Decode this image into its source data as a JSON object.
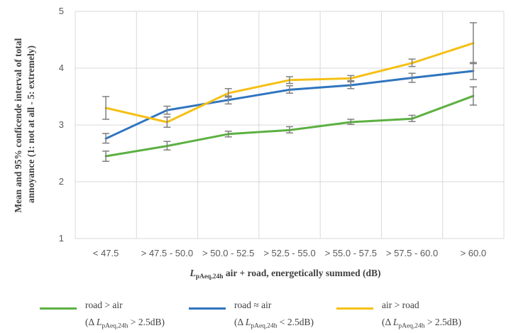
{
  "chart_data": {
    "type": "line",
    "categories": [
      "< 47.5",
      "> 47.5 - 50.0",
      "> 50.0 - 52.5",
      "> 52.5 - 55.0",
      "> 55.0 - 57.5",
      "> 57.5 - 60.0",
      "> 60.0"
    ],
    "ylim": [
      1,
      5
    ],
    "yticks": [
      1,
      2,
      3,
      4,
      5
    ],
    "grid": true,
    "ylabel_line1": "Mean and 95% conficende interval of total",
    "ylabel_line2": "annoyance (1: not at all - 5: extremely)",
    "xlabel_main": "L",
    "xlabel_sub": "pAeq,24h",
    "xlabel_rest": " air + road, energetically summed (dB)",
    "legend_position": "bottom",
    "series": [
      {
        "name": "road > air",
        "condition_prefix": "(Δ ",
        "condition_var": "L",
        "condition_sub": "pAeq,24h",
        "condition_suffix": " > 2.5dB)",
        "color": "#5cb042",
        "values": [
          2.45,
          2.63,
          2.84,
          2.91,
          3.05,
          3.11,
          3.51
        ],
        "ci_low": [
          2.36,
          2.56,
          2.79,
          2.86,
          3.01,
          3.06,
          3.35
        ],
        "ci_high": [
          2.54,
          2.71,
          2.89,
          2.97,
          3.1,
          3.17,
          3.67
        ]
      },
      {
        "name": "road ≈ air",
        "condition_prefix": "(Δ ",
        "condition_var": "L",
        "condition_sub": "pAeq,24h",
        "condition_suffix": " < 2.5dB)",
        "color": "#2f75c0",
        "values": [
          2.76,
          3.26,
          3.44,
          3.62,
          3.7,
          3.83,
          3.95
        ],
        "ci_low": [
          2.68,
          3.19,
          3.37,
          3.56,
          3.64,
          3.75,
          3.8
        ],
        "ci_high": [
          2.85,
          3.33,
          3.51,
          3.69,
          3.76,
          3.91,
          4.1
        ]
      },
      {
        "name": "air > road",
        "condition_prefix": "(Δ ",
        "condition_var": "L",
        "condition_sub": "pAeq,24h",
        "condition_suffix": " > 2.5dB)",
        "color": "#f5c016",
        "values": [
          3.3,
          3.05,
          3.56,
          3.79,
          3.82,
          4.09,
          4.44
        ],
        "ci_low": [
          3.1,
          2.96,
          3.49,
          3.73,
          3.78,
          4.03,
          4.08
        ],
        "ci_high": [
          3.5,
          3.14,
          3.64,
          3.85,
          3.87,
          4.16,
          4.8
        ]
      }
    ]
  }
}
